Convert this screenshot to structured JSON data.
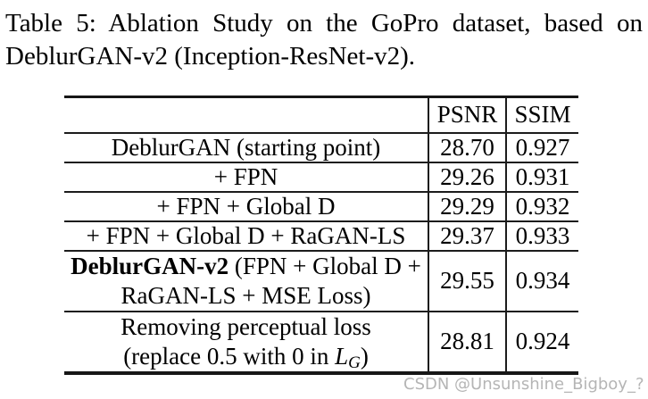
{
  "caption": {
    "line1": "Table 5: Ablation Study on the GoPro dataset, based on",
    "line2": "DeblurGAN-v2 (Inception-ResNet-v2)."
  },
  "table": {
    "headers": {
      "method": "",
      "psnr": "PSNR",
      "ssim": "SSIM"
    },
    "rows": [
      {
        "method": "DeblurGAN (starting point)",
        "psnr": "28.70",
        "ssim": "0.927"
      },
      {
        "method": "+ FPN",
        "psnr": "29.26",
        "ssim": "0.931"
      },
      {
        "method": "+ FPN + Global D",
        "psnr": "29.29",
        "ssim": "0.932"
      },
      {
        "method": "+ FPN + Global D + RaGAN-LS",
        "psnr": "29.37",
        "ssim": "0.933"
      },
      {
        "method_bold": "DeblurGAN-v2",
        "method_line1_rest": " (FPN + Global D +",
        "method_line2": "RaGAN-LS + MSE Loss)",
        "psnr": "29.55",
        "ssim": "0.934"
      },
      {
        "method_line1": "Removing perceptual loss",
        "method_line2_pre": "(replace 0.5 with 0 in ",
        "math_symbol": "L",
        "math_subscript": "G",
        "method_line2_post": ")",
        "psnr": "28.81",
        "ssim": "0.924"
      }
    ]
  },
  "watermark": {
    "text": "CSDN @Unsunshine_Bigboy_?"
  },
  "colors": {
    "text": "#000000",
    "table_border": "#1c1c1c",
    "watermark": "#a8a8a8",
    "background": "#ffffff"
  }
}
